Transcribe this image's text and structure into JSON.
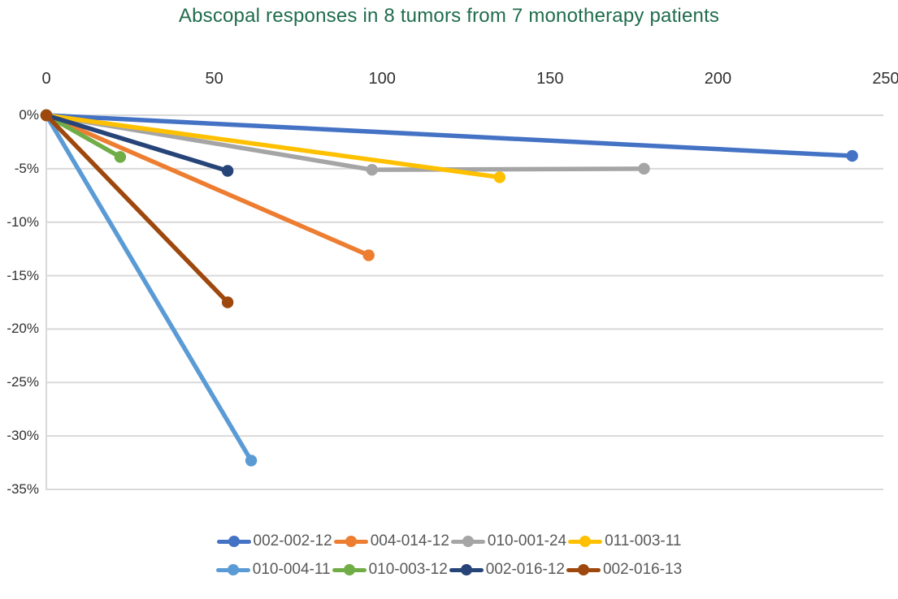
{
  "chart_data": {
    "type": "line",
    "title": "Abscopal responses in 8 tumors from 7 monotherapy patients",
    "title_color": "#1F6C4D",
    "xlabel": "",
    "ylabel": "",
    "xlim": [
      0,
      250
    ],
    "ylim": [
      -35,
      0
    ],
    "x_ticks": [
      0,
      50,
      100,
      150,
      200,
      250
    ],
    "y_ticks": [
      {
        "value": 0,
        "label": "0%"
      },
      {
        "value": -5,
        "label": "-5%"
      },
      {
        "value": -10,
        "label": "-10%"
      },
      {
        "value": -15,
        "label": "-15%"
      },
      {
        "value": -20,
        "label": "-20%"
      },
      {
        "value": -25,
        "label": "-25%"
      },
      {
        "value": -30,
        "label": "-30%"
      },
      {
        "value": -35,
        "label": "-35%"
      }
    ],
    "grid": true,
    "gridline_color": "#D9D9D9",
    "axis_line_color": "#D9D9D9",
    "axis_label_color": "#303030",
    "legend_position": "bottom",
    "legend_text_color": "#595959",
    "series": [
      {
        "name": "002-002-12",
        "color": "#4472C4",
        "points": [
          [
            0,
            0
          ],
          [
            240,
            -3.8
          ]
        ]
      },
      {
        "name": "004-014-12",
        "color": "#ED7D31",
        "points": [
          [
            0,
            0
          ],
          [
            96,
            -13.1
          ]
        ]
      },
      {
        "name": "010-001-24",
        "color": "#A5A5A5",
        "points": [
          [
            0,
            0
          ],
          [
            97,
            -5.1
          ],
          [
            178,
            -5.0
          ]
        ]
      },
      {
        "name": "011-003-11",
        "color": "#FFC000",
        "points": [
          [
            0,
            0
          ],
          [
            135,
            -5.8
          ]
        ]
      },
      {
        "name": "010-004-11",
        "color": "#5B9BD5",
        "points": [
          [
            0,
            0
          ],
          [
            61,
            -32.3
          ]
        ]
      },
      {
        "name": "010-003-12",
        "color": "#70AD47",
        "points": [
          [
            0,
            0
          ],
          [
            22,
            -3.9
          ]
        ]
      },
      {
        "name": "002-016-12",
        "color": "#264478",
        "points": [
          [
            0,
            0
          ],
          [
            54,
            -5.2
          ]
        ]
      },
      {
        "name": "002-016-13",
        "color": "#9E480E",
        "points": [
          [
            0,
            0
          ],
          [
            54,
            -17.5
          ]
        ]
      }
    ]
  }
}
